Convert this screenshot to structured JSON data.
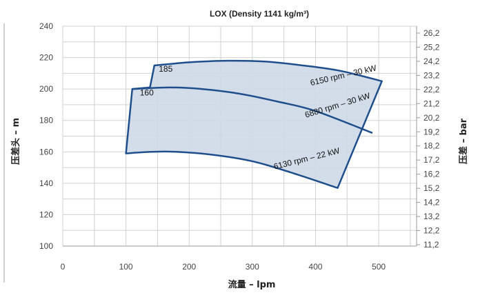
{
  "chart_data": {
    "type": "line",
    "title": "LOX (Density 1141 kg/m³)",
    "xlabel": "流量 – lpm",
    "ylabel": "压差头 – m",
    "ylabel_right": "压差 – bar",
    "xlim": [
      0,
      560
    ],
    "ylim": [
      100,
      240
    ],
    "x_ticks": [
      "0",
      "100",
      "200",
      "300",
      "400",
      "500"
    ],
    "y_ticks": [
      "100",
      "120",
      "140",
      "160",
      "180",
      "200",
      "220",
      "240"
    ],
    "right_ticks": [
      "11,2",
      "12,2",
      "13,2",
      "14,2",
      "15,2",
      "16,2",
      "17,2",
      "18,2",
      "19,2",
      "20,2",
      "21,2",
      "22,2",
      "23,2",
      "24,2",
      "25,2",
      "26,2"
    ],
    "grid": true,
    "colors": {
      "outline": "#1f4e8c",
      "fill": "#cdd9e7",
      "grid": "#d0d0d0"
    },
    "envelope": {
      "upper_curve": [
        [
          145,
          215
        ],
        [
          200,
          217
        ],
        [
          260,
          218
        ],
        [
          320,
          217.5
        ],
        [
          380,
          215
        ],
        [
          440,
          211.5
        ],
        [
          505,
          205
        ]
      ],
      "right_edge": [
        [
          505,
          205
        ],
        [
          435,
          137
        ]
      ],
      "lower_curve": [
        [
          435,
          137
        ],
        [
          360,
          147
        ],
        [
          300,
          154
        ],
        [
          240,
          158
        ],
        [
          180,
          160
        ],
        [
          140,
          160
        ],
        [
          100,
          159
        ]
      ],
      "left_edge": [
        [
          100,
          159
        ],
        [
          110,
          200
        ],
        [
          138,
          201
        ],
        [
          145,
          215
        ]
      ],
      "middle_curve": [
        [
          110,
          200
        ],
        [
          170,
          201
        ],
        [
          220,
          200
        ],
        [
          280,
          197
        ],
        [
          340,
          192
        ],
        [
          400,
          186
        ],
        [
          490,
          172
        ]
      ]
    },
    "series": [
      {
        "name": "185",
        "values": [
          [
            145,
            215
          ],
          [
            200,
            217
          ],
          [
            260,
            218
          ],
          [
            320,
            217.5
          ],
          [
            380,
            215
          ],
          [
            440,
            211.5
          ],
          [
            505,
            205
          ]
        ]
      },
      {
        "name": "160",
        "values": [
          [
            110,
            200
          ],
          [
            170,
            201
          ],
          [
            220,
            200
          ],
          [
            280,
            197
          ],
          [
            340,
            192
          ],
          [
            400,
            186
          ],
          [
            490,
            172
          ]
        ]
      },
      {
        "name": "",
        "values": [
          [
            100,
            159
          ],
          [
            140,
            160
          ],
          [
            180,
            160
          ],
          [
            240,
            158
          ],
          [
            300,
            154
          ],
          [
            360,
            147
          ],
          [
            435,
            137
          ]
        ]
      }
    ],
    "annotations": [
      {
        "text": "185",
        "x": 152,
        "y": 211
      },
      {
        "text": "160",
        "x": 122,
        "y": 196
      },
      {
        "text": "6150 rpm – 30 kW",
        "x": 445,
        "y": 207
      },
      {
        "text": "6880 rpm – 30 kW",
        "x": 436,
        "y": 188
      },
      {
        "text": "6130 rpm – 22 kW",
        "x": 387,
        "y": 154
      }
    ]
  }
}
